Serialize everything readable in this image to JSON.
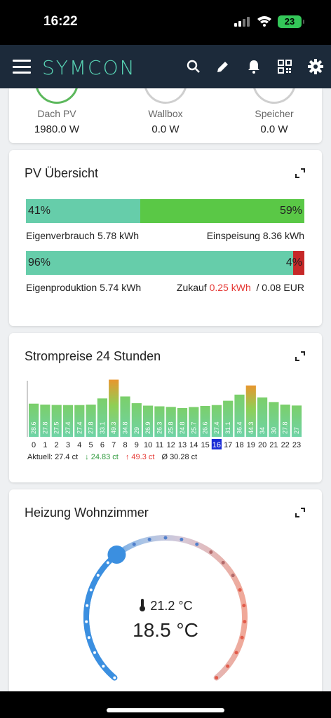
{
  "status_bar": {
    "time": "16:22",
    "battery": "23"
  },
  "app_bar": {
    "brand": "SYMCON"
  },
  "energy_card": {
    "items": [
      {
        "label": "Dach PV",
        "value": "1980.0 W"
      },
      {
        "label": "Wallbox",
        "value": "0.0 W"
      },
      {
        "label": "Speicher",
        "value": "0.0 W"
      }
    ]
  },
  "pv_card": {
    "title": "PV Übersicht",
    "bar1": {
      "left_pct": "41%",
      "right_pct": "59%",
      "left_fraction": 0.41,
      "left_color": "#66cdaa",
      "right_color": "#5ac846"
    },
    "caption1": {
      "left": "Eigenverbrauch 5.78 kWh",
      "right": "Einspeisung 8.36 kWh"
    },
    "bar2": {
      "left_pct": "96%",
      "right_pct": "4%",
      "left_fraction": 0.96,
      "left_color": "#66cdaa",
      "right_color": "#c62828"
    },
    "caption2": {
      "left": "Eigenproduktion 5.74 kWh",
      "zukauf_label": "Zukauf",
      "zukauf_value": "0.25 kWh",
      "separator": "/",
      "eur": "0.08 EUR"
    }
  },
  "price_card": {
    "title": "Strompreise 24 Stunden",
    "current": "Aktuell: 27.4 ct",
    "min": "24.83 ct",
    "max": "49.3 ct",
    "avg": "Ø 30.28 ct"
  },
  "chart_data": {
    "type": "bar",
    "categories": [
      "0",
      "1",
      "2",
      "3",
      "4",
      "5",
      "6",
      "7",
      "8",
      "9",
      "10",
      "11",
      "12",
      "13",
      "14",
      "15",
      "16",
      "17",
      "18",
      "19",
      "20",
      "21",
      "22",
      "23"
    ],
    "values": [
      28.6,
      27.8,
      27.5,
      27.4,
      27.4,
      27.8,
      33.1,
      49.3,
      34.8,
      29,
      26.9,
      26.3,
      25.8,
      24.8,
      25.7,
      26.6,
      27.4,
      31.1,
      36.4,
      44.3,
      34,
      30,
      27.8,
      27
    ],
    "value_labels": [
      "28.6",
      "27.8",
      "27.5",
      "27.4",
      "27.4",
      "27.8",
      "33.1",
      "49.3",
      "34.8",
      "29",
      "26.9",
      "26.3",
      "25.8",
      "24.8",
      "25.7",
      "26.6",
      "27.4",
      "31.1",
      "36.4",
      "44.3",
      "34",
      "30",
      "27.8",
      "27"
    ],
    "highlight_index": 16,
    "ylim": [
      0,
      52
    ]
  },
  "heating_card": {
    "title": "Heizung Wohnzimmer",
    "current_temp": "21.2 °C",
    "setpoint": "18.5 °C",
    "setpoint_value": 18.5
  }
}
